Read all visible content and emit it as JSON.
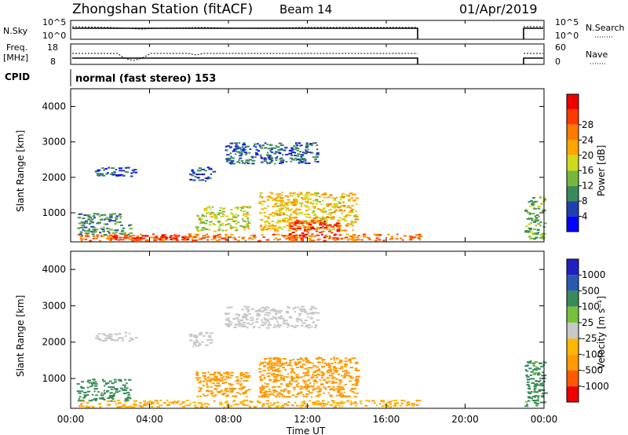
{
  "header": {
    "title": "Zhongshan Station (fitACF)",
    "beam": "Beam 14",
    "date": "01/Apr/2019"
  },
  "strips": {
    "nsky_label": "N.Sky",
    "nsky_ticks": [
      "10^5",
      "10^0"
    ],
    "nsearch_label": "N.Search",
    "nsearch_ticks": [
      "10^5",
      "10^0"
    ],
    "freq_label_1": "Freq.",
    "freq_label_2": "[MHz]",
    "freq_ticks": [
      "18",
      "8"
    ],
    "nave_label": "Nave",
    "nave_ticks": [
      "60",
      "0"
    ],
    "cpid_label": "CPID",
    "cpid_text": "normal (fast stereo) 153"
  },
  "colors": {
    "power": [
      "#0000ff",
      "#2040b0",
      "#3a8a5a",
      "#77b63c",
      "#cfd91c",
      "#ffa600",
      "#ff7a00",
      "#ff3a00",
      "#ee0000"
    ],
    "velocity": [
      "#ee0000",
      "#ff5a00",
      "#ff9a00",
      "#ffb800",
      "#c8c8c8",
      "#77c13c",
      "#3a8a5a",
      "#2a5ab0",
      "#2020c0"
    ]
  },
  "chart_data": [
    {
      "type": "heatmap",
      "name": "power",
      "xlabel": "",
      "ylabel": "Slant Range [km]",
      "yticks": [
        "1000",
        "2000",
        "3000",
        "4000"
      ],
      "ylim": [
        180,
        4500
      ],
      "colorbar_label": "Power [dB]",
      "colorbar_ticks": [
        "4",
        "8",
        "12",
        "16",
        "20",
        "24",
        "28"
      ],
      "colorbar_range": [
        0,
        30
      ],
      "data_gaps_hours": [
        [
          17.8,
          22.9
        ]
      ],
      "regions": [
        {
          "x": [
            0.3,
            17.7
          ],
          "y": [
            230,
            420
          ],
          "v": 22
        },
        {
          "x": [
            2.0,
            6.0
          ],
          "y": [
            250,
            400
          ],
          "v": 27
        },
        {
          "x": [
            0.3,
            3.0
          ],
          "y": [
            400,
            1000
          ],
          "v": 9
        },
        {
          "x": [
            1.2,
            3.3
          ],
          "y": [
            2050,
            2300
          ],
          "v": 6
        },
        {
          "x": [
            6.3,
            9.0
          ],
          "y": [
            500,
            1200
          ],
          "v": 14
        },
        {
          "x": [
            9.5,
            14.5
          ],
          "y": [
            500,
            1600
          ],
          "v": 17
        },
        {
          "x": [
            11.0,
            13.5
          ],
          "y": [
            300,
            800
          ],
          "v": 25
        },
        {
          "x": [
            7.8,
            12.5
          ],
          "y": [
            2400,
            3000
          ],
          "v": 6
        },
        {
          "x": [
            6.0,
            7.2
          ],
          "y": [
            1900,
            2300
          ],
          "v": 6
        },
        {
          "x": [
            23.0,
            24.0
          ],
          "y": [
            250,
            1500
          ],
          "v": 11
        }
      ]
    },
    {
      "type": "heatmap",
      "name": "velocity",
      "xlabel": "Time UT",
      "xticks": [
        "00:00",
        "04:00",
        "08:00",
        "12:00",
        "16:00",
        "20:00",
        "00:00"
      ],
      "xlim_hours": [
        0,
        24
      ],
      "ylabel": "Slant Range [km]",
      "yticks": [
        "1000",
        "2000",
        "3000",
        "4000"
      ],
      "ylim": [
        180,
        4500
      ],
      "colorbar_label": "Velocity [m s⁻¹]",
      "colorbar_ticks": [
        "-1000",
        "-500",
        "-100",
        "-25",
        "25",
        "100",
        "500",
        "1000"
      ],
      "data_gaps_hours": [
        [
          17.8,
          22.9
        ]
      ],
      "regions": [
        {
          "x": [
            0.3,
            3.0
          ],
          "y": [
            400,
            1000
          ],
          "v": 300
        },
        {
          "x": [
            0.3,
            17.7
          ],
          "y": [
            230,
            420
          ],
          "v": -90
        },
        {
          "x": [
            1.2,
            3.3
          ],
          "y": [
            2050,
            2300
          ],
          "v": 5
        },
        {
          "x": [
            6.3,
            9.0
          ],
          "y": [
            500,
            1200
          ],
          "v": -200
        },
        {
          "x": [
            9.5,
            14.5
          ],
          "y": [
            500,
            1600
          ],
          "v": -300
        },
        {
          "x": [
            7.8,
            12.5
          ],
          "y": [
            2400,
            3000
          ],
          "v": 10
        },
        {
          "x": [
            6.0,
            7.2
          ],
          "y": [
            1900,
            2300
          ],
          "v": 5
        },
        {
          "x": [
            23.0,
            24.0
          ],
          "y": [
            250,
            1500
          ],
          "v": 150
        }
      ]
    }
  ]
}
